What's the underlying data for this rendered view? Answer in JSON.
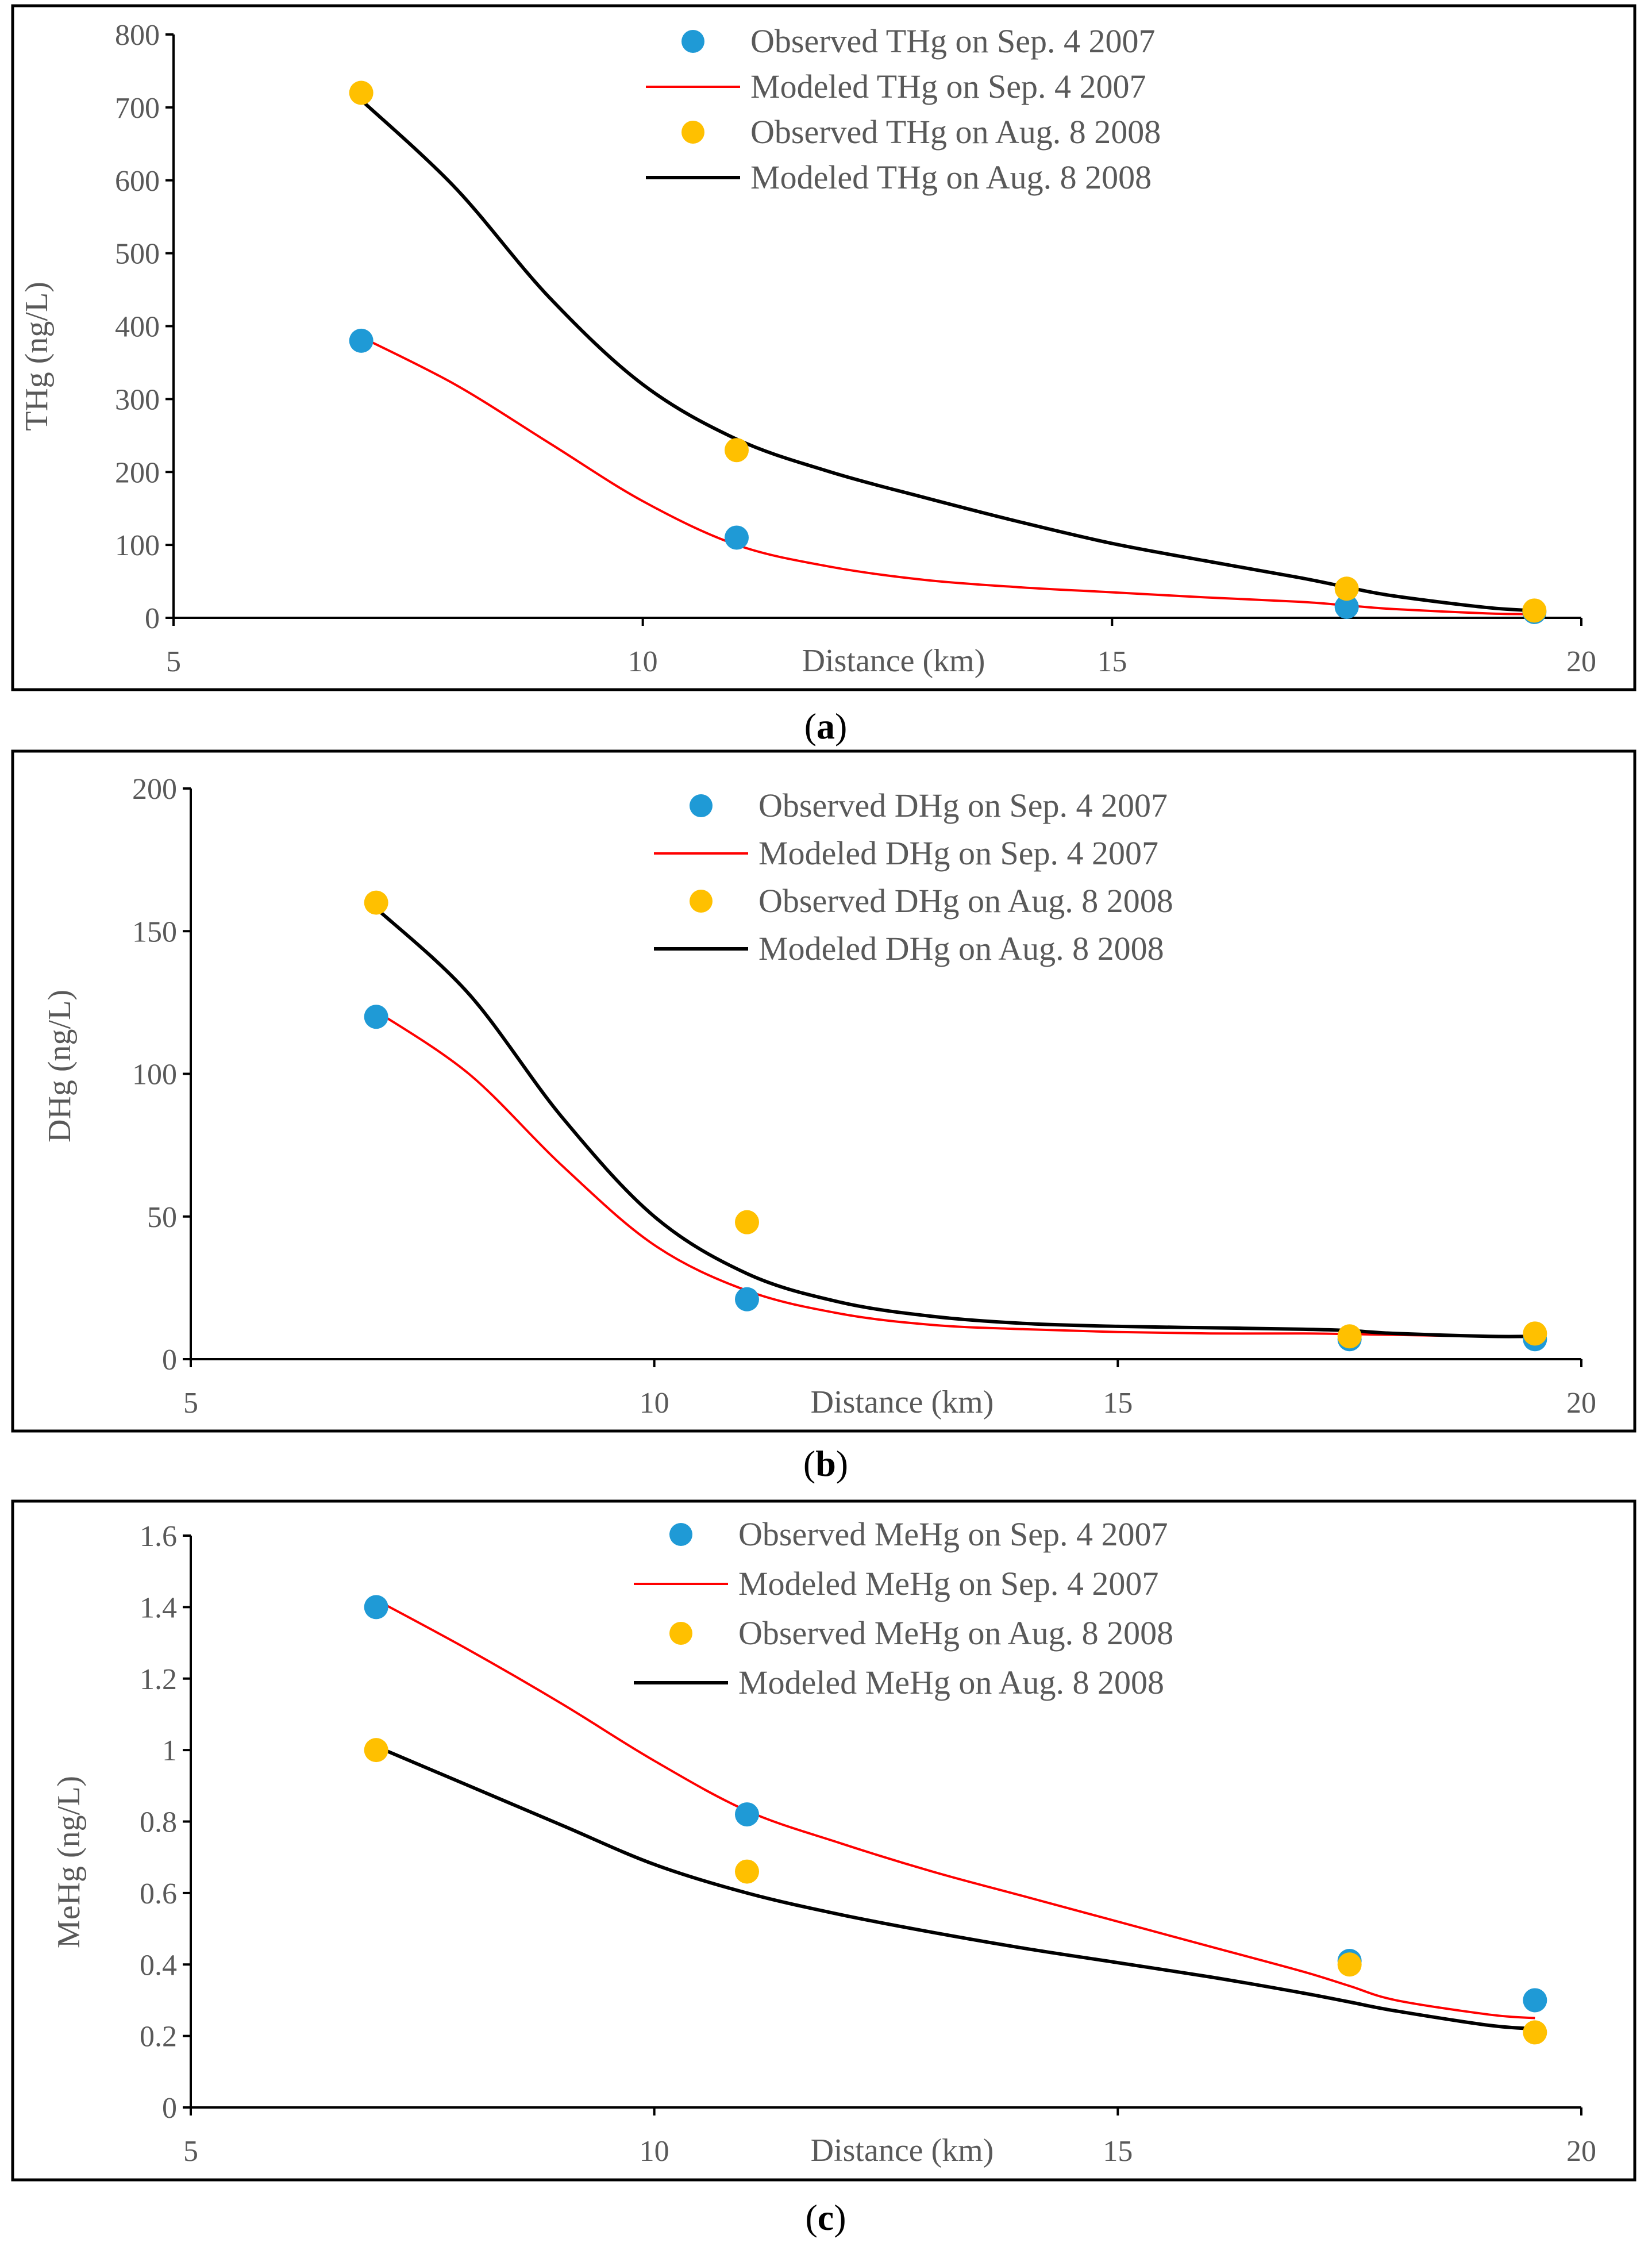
{
  "colors": {
    "sep_2007": "#1F9AD6",
    "aug_2008": "#FFC000",
    "modeled_sep_2007": "#FF0000",
    "modeled_aug_2008": "#000000",
    "frame": "#000000",
    "text": "#595959"
  },
  "chart_data": [
    {
      "panel": "(a)",
      "caption_letter": "a",
      "type": "scatter",
      "xlabel": "Distance (km)",
      "ylabel": "THg (ng/L)",
      "xlim": [
        5,
        20
      ],
      "ylim": [
        0,
        800
      ],
      "x_ticks": [
        5,
        10,
        15,
        20
      ],
      "y_ticks": [
        0,
        100,
        200,
        300,
        400,
        500,
        600,
        700,
        800
      ],
      "y_tick_labels": [
        "0",
        "100",
        "200",
        "300",
        "400",
        "500",
        "600",
        "700",
        "800"
      ],
      "legend_position": "top-right",
      "series": [
        {
          "name": "Observed THg on Sep. 4 2007",
          "kind": "scatter",
          "color_key": "sep_2007",
          "x": [
            7,
            11,
            17.5,
            19.5
          ],
          "y": [
            380,
            110,
            15,
            8
          ]
        },
        {
          "name": "Modeled THg on Sep. 4 2007",
          "kind": "line",
          "color_key": "modeled_sep_2007",
          "x": [
            7,
            8,
            9,
            10,
            11,
            12,
            13,
            14,
            15,
            16,
            17,
            17.5,
            18,
            19,
            19.5
          ],
          "y": [
            385,
            320,
            240,
            160,
            100,
            70,
            52,
            42,
            35,
            28,
            22,
            17,
            12,
            6,
            5
          ]
        },
        {
          "name": "Observed THg on Aug. 8 2008",
          "kind": "scatter",
          "color_key": "aug_2008",
          "x": [
            7,
            11,
            17.5,
            19.5
          ],
          "y": [
            720,
            230,
            40,
            10
          ]
        },
        {
          "name": "Modeled THg on Aug. 8 2008",
          "kind": "line",
          "color_key": "modeled_aug_2008",
          "x": [
            7,
            8,
            9,
            10,
            11,
            12,
            13,
            14,
            15,
            16,
            17,
            17.5,
            18,
            19,
            19.5
          ],
          "y": [
            710,
            590,
            440,
            320,
            245,
            200,
            165,
            132,
            102,
            78,
            55,
            42,
            30,
            14,
            10
          ]
        }
      ]
    },
    {
      "panel": "(b)",
      "caption_letter": "b",
      "type": "scatter",
      "xlabel": "Distance (km)",
      "ylabel": "DHg (ng/L)",
      "xlim": [
        5,
        20
      ],
      "ylim": [
        0,
        200
      ],
      "x_ticks": [
        5,
        10,
        15,
        20
      ],
      "y_ticks": [
        0,
        50,
        100,
        150,
        200
      ],
      "y_tick_labels": [
        "0",
        "50",
        "100",
        "150",
        "200"
      ],
      "legend_position": "top-right",
      "series": [
        {
          "name": "Observed DHg on Sep. 4 2007",
          "kind": "scatter",
          "color_key": "sep_2007",
          "x": [
            7,
            11,
            17.5,
            19.5
          ],
          "y": [
            120,
            21,
            7,
            7
          ]
        },
        {
          "name": "Modeled DHg on Sep. 4 2007",
          "kind": "line",
          "color_key": "modeled_sep_2007",
          "x": [
            7,
            8,
            9,
            10,
            11,
            12,
            13,
            14,
            15,
            16,
            17,
            17.5,
            18,
            19,
            19.5
          ],
          "y": [
            122,
            100,
            68,
            40,
            24,
            16,
            12,
            10.5,
            9.5,
            9,
            9,
            8.8,
            8.5,
            8,
            8
          ]
        },
        {
          "name": "Observed DHg on Aug. 8 2008",
          "kind": "scatter",
          "color_key": "aug_2008",
          "x": [
            7,
            11,
            17.5,
            19.5
          ],
          "y": [
            160,
            48,
            8,
            9
          ]
        },
        {
          "name": "Modeled DHg on Aug. 8 2008",
          "kind": "line",
          "color_key": "modeled_aug_2008",
          "x": [
            7,
            8,
            9,
            10,
            11,
            12,
            13,
            14,
            15,
            16,
            17,
            17.5,
            18,
            19,
            19.5
          ],
          "y": [
            158,
            128,
            85,
            50,
            30,
            20,
            15,
            12.5,
            11.5,
            11,
            10.5,
            10,
            9,
            8,
            8
          ]
        }
      ]
    },
    {
      "panel": "(c)",
      "caption_letter": "c",
      "type": "scatter",
      "xlabel": "Distance (km)",
      "ylabel": "MeHg (ng/L)",
      "xlim": [
        5,
        20
      ],
      "ylim": [
        0,
        1.6
      ],
      "x_ticks": [
        5,
        10,
        15,
        20
      ],
      "y_ticks": [
        0,
        0.2,
        0.4,
        0.6,
        0.8,
        1,
        1.2,
        1.4,
        1.6
      ],
      "y_tick_labels": [
        "0",
        "0.2",
        "0.4",
        "0.6",
        "0.8",
        "1",
        "1.2",
        "1.4",
        "1.6"
      ],
      "legend_position": "top-right",
      "series": [
        {
          "name": "Observed MeHg on Sep. 4 2007",
          "kind": "scatter",
          "color_key": "sep_2007",
          "x": [
            7,
            11,
            17.5,
            19.5
          ],
          "y": [
            1.4,
            0.82,
            0.41,
            0.3
          ]
        },
        {
          "name": "Modeled MeHg on Sep. 4 2007",
          "kind": "line",
          "color_key": "modeled_sep_2007",
          "x": [
            7,
            8,
            9,
            10,
            11,
            12,
            13,
            14,
            15,
            16,
            17,
            17.5,
            18,
            19,
            19.5
          ],
          "y": [
            1.42,
            1.28,
            1.13,
            0.97,
            0.83,
            0.74,
            0.66,
            0.59,
            0.52,
            0.45,
            0.38,
            0.34,
            0.3,
            0.26,
            0.25
          ]
        },
        {
          "name": "Observed MeHg on Aug. 8 2008",
          "kind": "scatter",
          "color_key": "aug_2008",
          "x": [
            7,
            11,
            17.5,
            19.5
          ],
          "y": [
            1.0,
            0.66,
            0.4,
            0.21
          ]
        },
        {
          "name": "Modeled MeHg on Aug. 8 2008",
          "kind": "line",
          "color_key": "modeled_aug_2008",
          "x": [
            7,
            8,
            9,
            10,
            11,
            12,
            13,
            14,
            15,
            16,
            17,
            17.5,
            18,
            19,
            19.5
          ],
          "y": [
            1.01,
            0.9,
            0.79,
            0.68,
            0.6,
            0.54,
            0.49,
            0.445,
            0.405,
            0.365,
            0.32,
            0.295,
            0.27,
            0.23,
            0.22
          ]
        }
      ]
    }
  ]
}
